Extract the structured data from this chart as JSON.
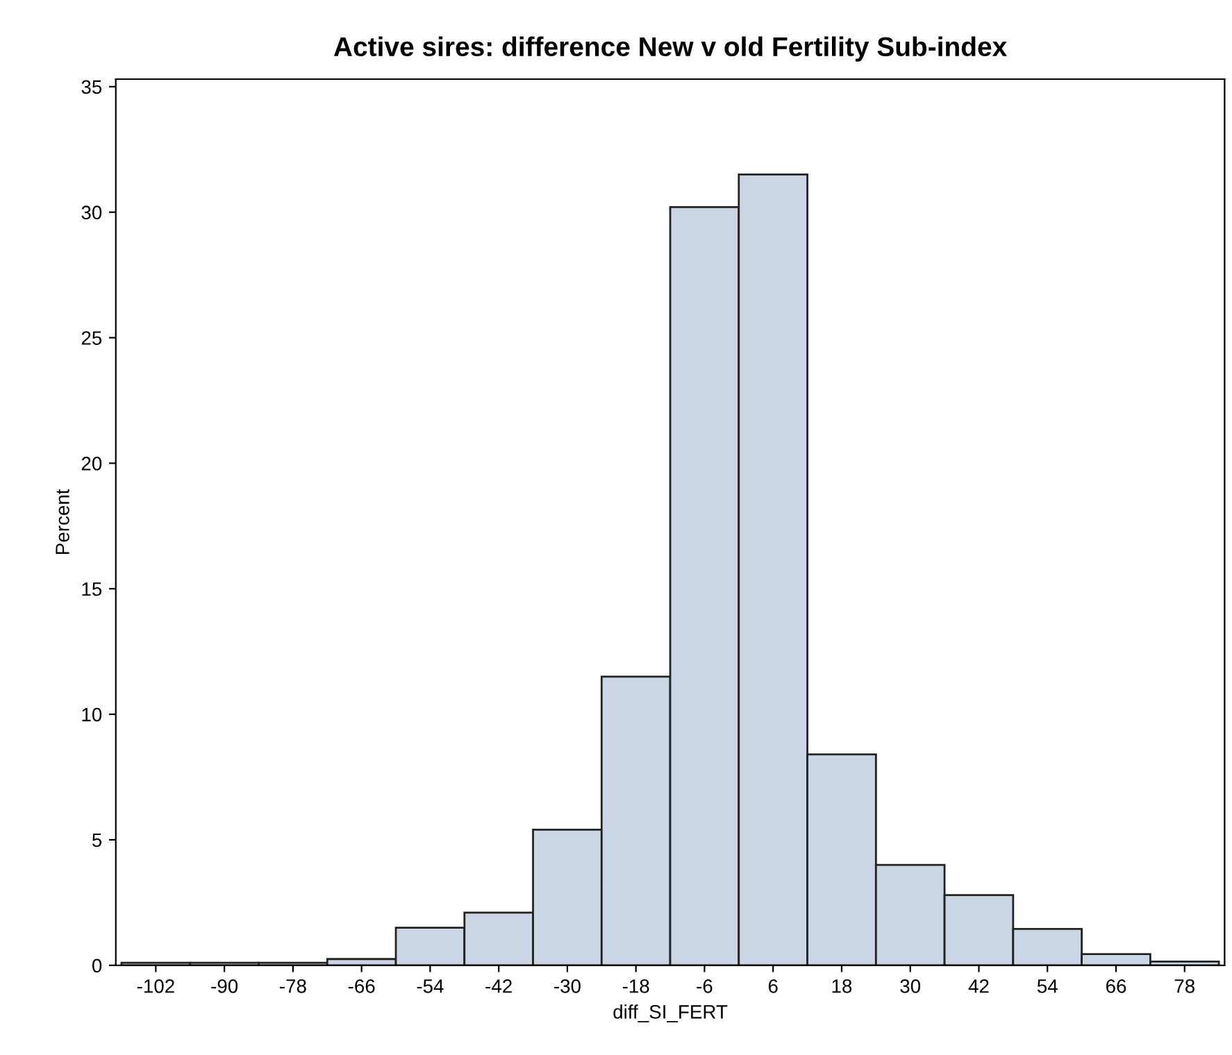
{
  "chart_data": {
    "type": "histogram",
    "title": "Active sires: difference New v old Fertility Sub-index",
    "xlabel": "diff_SI_FERT",
    "ylabel": "Percent",
    "bins": [
      -108,
      -96,
      -84,
      -72,
      -60,
      -48,
      -36,
      -24,
      -12,
      0,
      12,
      24,
      36,
      48,
      60,
      72,
      84
    ],
    "values": [
      0.1,
      0.1,
      0.1,
      0.25,
      1.5,
      2.1,
      5.4,
      11.5,
      30.2,
      31.5,
      8.4,
      4.0,
      2.8,
      1.45,
      0.45,
      0.15
    ],
    "color": "#cad5e5",
    "xlim": [
      -109,
      85
    ],
    "xticks": [
      -102,
      -90,
      -78,
      -66,
      -54,
      -42,
      -30,
      -18,
      -6,
      6,
      18,
      30,
      42,
      54,
      66,
      78
    ],
    "ylim": [
      0,
      35.3
    ],
    "yticks": [
      0,
      5,
      10,
      15,
      20,
      25,
      30,
      35
    ],
    "grid": false
  }
}
